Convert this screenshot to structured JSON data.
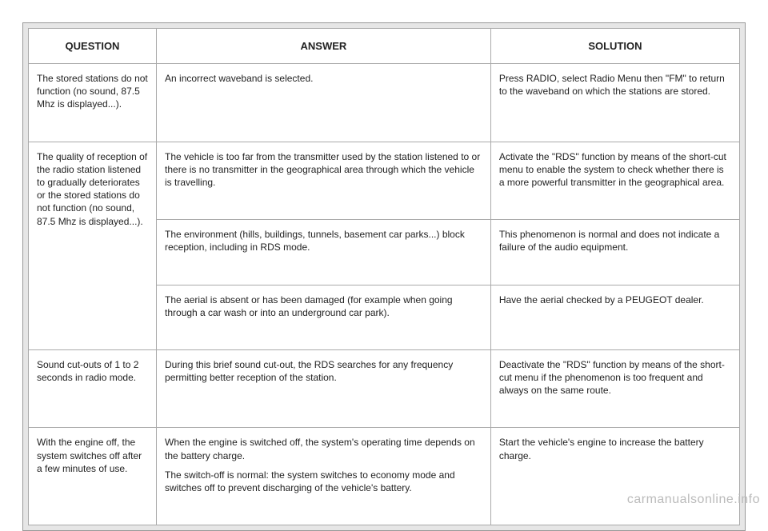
{
  "table": {
    "columns": [
      "QUESTION",
      "ANSWER",
      "SOLUTION"
    ],
    "rows": [
      {
        "question": "The stored stations do not function (no sound, 87.5 Mhz is displayed...).",
        "answer": "An incorrect waveband is selected.",
        "solution": "Press RADIO, select Radio Menu then \"FM\" to return to the waveband on which the stations are stored."
      },
      {
        "question": "The quality of reception of the radio station listened to gradually deteriorates or the stored stations do not function (no sound, 87.5 Mhz is displayed...).",
        "subrows": [
          {
            "answer": "The vehicle is too far from the transmitter used by the station listened to or there is no transmitter in the geographical area through which the vehicle is travelling.",
            "solution": "Activate the \"RDS\" function by means of the short-cut menu to enable the system to check whether there is a more powerful transmitter in the geographical area."
          },
          {
            "answer": "The environment (hills, buildings, tunnels, basement car parks...) block reception, including in RDS mode.",
            "solution": "This phenomenon is normal and does not indicate a failure of the audio equipment."
          },
          {
            "answer": "The aerial is absent or has been damaged (for example when going through a car wash or into an underground car park).",
            "solution": "Have the aerial checked by a PEUGEOT dealer."
          }
        ]
      },
      {
        "question": "Sound cut-outs of 1 to 2 seconds in radio mode.",
        "answer": "During this brief sound cut-out, the RDS searches for any frequency permitting better reception of the station.",
        "solution": "Deactivate the \"RDS\" function by means of the short-cut menu if the phenomenon is too frequent and always on the same route."
      },
      {
        "question": "With the engine off, the system switches off after a few minutes of use.",
        "answer_p1": "When the engine is switched off, the system's operating time depends on the battery charge.",
        "answer_p2": "The switch-off is normal: the system switches to economy mode and switches off to prevent discharging of the vehicle's battery.",
        "solution": "Start the vehicle's engine to increase the battery charge."
      }
    ]
  },
  "watermark": "carmanualsonline.info",
  "styling": {
    "page_bg": "#ffffff",
    "container_bg": "#e6e6e6",
    "border_color": "#aaaaaa",
    "text_color": "#222222",
    "header_fontsize": 13,
    "cell_fontsize": 12,
    "watermark_color": "#bbbbbb"
  }
}
